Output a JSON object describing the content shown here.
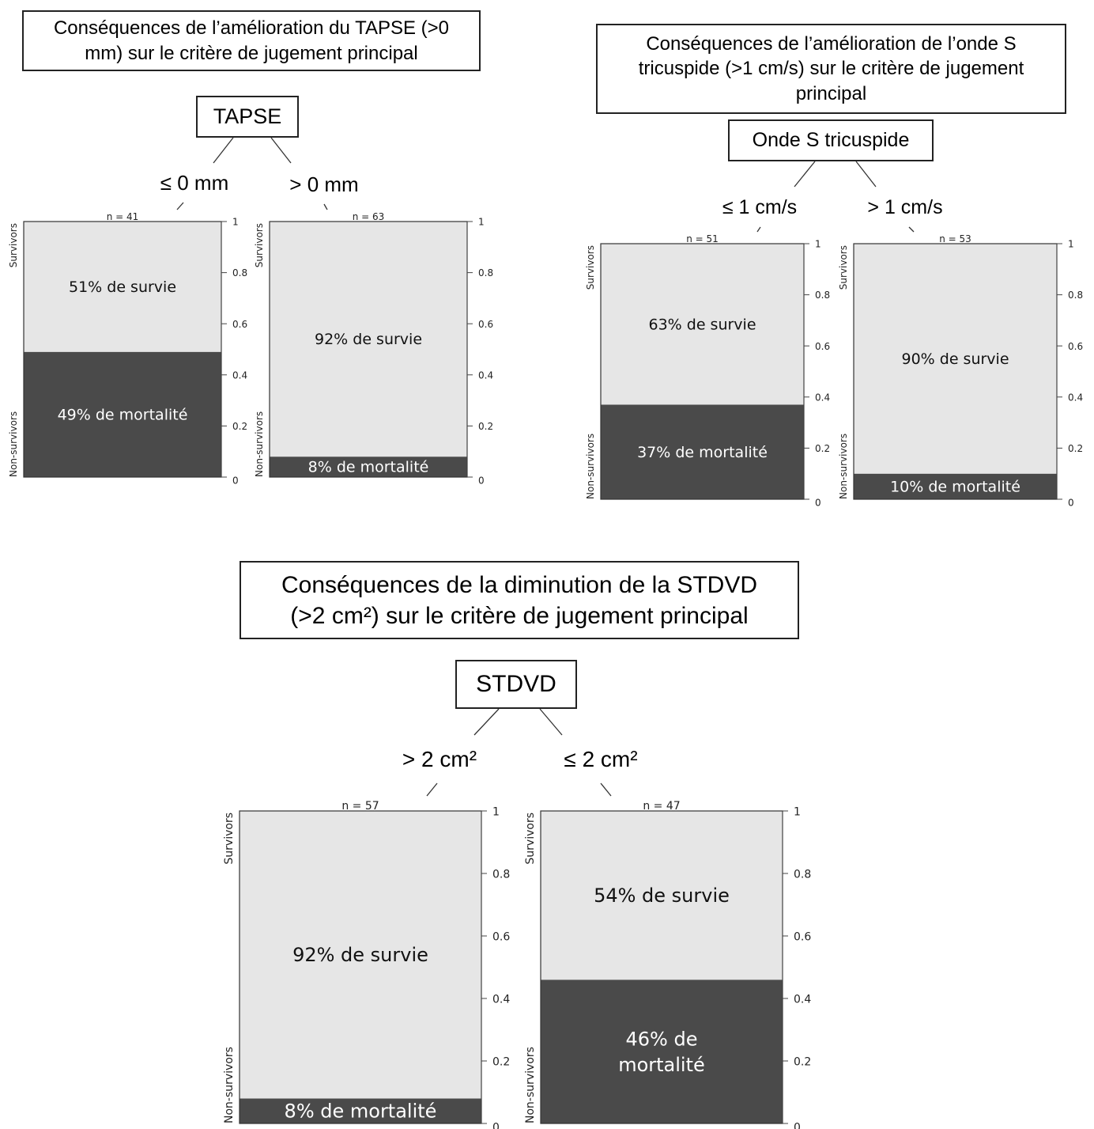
{
  "chart_data": [
    {
      "type": "bar",
      "title": "Conséquences de l’amélioration du TAPSE (>0 mm) sur le critère de jugement principal",
      "title_lines": [
        "Conséquences de l’amélioration du TAPSE (>0",
        "mm) sur le critère de jugement principal"
      ],
      "node_label": "TAPSE",
      "y_axis_label_top": "Survivors",
      "y_axis_label_bottom": "Non-survivors",
      "y_ticks": [
        "1",
        "0.8",
        "0.6",
        "0.4",
        "0.2",
        "0"
      ],
      "ylim": [
        0,
        1
      ],
      "groups": [
        {
          "split": "≤ 0 mm",
          "n_label": "n = 41",
          "survival": 0.51,
          "mortality": 0.49,
          "survival_label": "51% de survie",
          "mortality_label": "49% de mortalité"
        },
        {
          "split": "> 0 mm",
          "n_label": "n = 63",
          "survival": 0.92,
          "mortality": 0.08,
          "survival_label": "92% de survie",
          "mortality_label": "8%  de mortalité"
        }
      ]
    },
    {
      "type": "bar",
      "title": "Conséquences de l’amélioration de l’onde S tricuspide (>1 cm/s) sur le critère de jugement principal",
      "title_lines": [
        "Conséquences de l’amélioration de l’onde S",
        "tricuspide (>1 cm/s) sur le critère de jugement",
        "principal"
      ],
      "node_label": "Onde S tricuspide",
      "y_axis_label_top": "Survivors",
      "y_axis_label_bottom": "Non-survivors",
      "y_ticks": [
        "1",
        "0.8",
        "0.6",
        "0.4",
        "0.2",
        "0"
      ],
      "ylim": [
        0,
        1
      ],
      "groups": [
        {
          "split": "≤ 1 cm/s",
          "n_label": "n = 51",
          "survival": 0.63,
          "mortality": 0.37,
          "survival_label": "63% de survie",
          "mortality_label": "37% de mortalité"
        },
        {
          "split": "> 1 cm/s",
          "n_label": "n = 53",
          "survival": 0.9,
          "mortality": 0.1,
          "survival_label": "90% de survie",
          "mortality_label": "10% de mortalité"
        }
      ]
    },
    {
      "type": "bar",
      "title": "Conséquences de la diminution de la STDVD (>2 cm²) sur le critère de jugement principal",
      "title_lines": [
        "Conséquences de la diminution de la STDVD",
        "(>2 cm²) sur le critère de jugement principal"
      ],
      "node_label": "STDVD",
      "y_axis_label_top": "Survivors",
      "y_axis_label_bottom": "Non-survivors",
      "y_ticks": [
        "1",
        "0.8",
        "0.6",
        "0.4",
        "0.2",
        "0"
      ],
      "ylim": [
        0,
        1
      ],
      "groups": [
        {
          "split": "> 2 cm²",
          "n_label": "n = 57",
          "survival": 0.92,
          "mortality": 0.08,
          "survival_label": "92% de survie",
          "mortality_label": "8% de mortalité"
        },
        {
          "split": "≤ 2 cm²",
          "n_label": "n = 47",
          "survival": 0.54,
          "mortality": 0.46,
          "survival_label": "54% de survie",
          "mortality_label": "46% de\nmortalité"
        }
      ]
    }
  ],
  "colors": {
    "survival": "#e6e6e6",
    "mortality": "#4a4a4a",
    "mortality_text": "#ffffff",
    "survival_text": "#111111"
  }
}
